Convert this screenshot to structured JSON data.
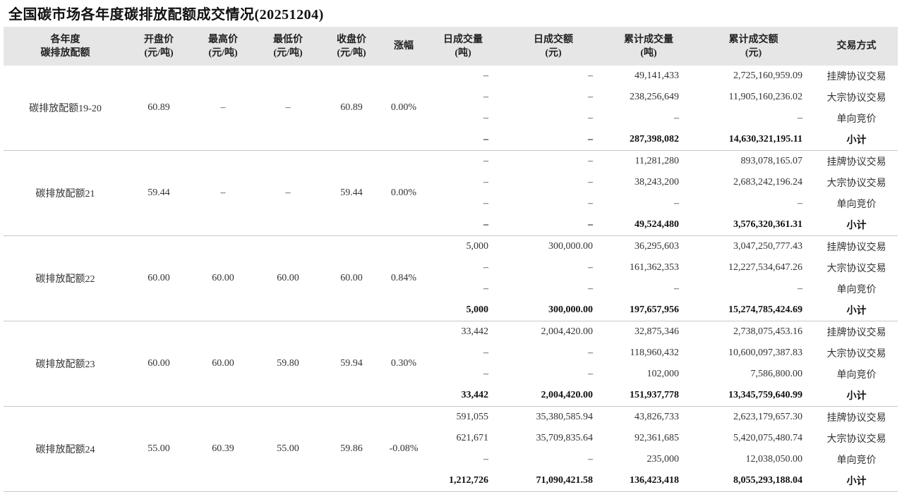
{
  "title": "全国碳市场各年度碳排放配额成交情况(20251204)",
  "headers": [
    {
      "l1": "各年度",
      "l2": "碳排放配额"
    },
    {
      "l1": "开盘价",
      "l2": "(元/吨)"
    },
    {
      "l1": "最高价",
      "l2": "(元/吨)"
    },
    {
      "l1": "最低价",
      "l2": "(元/吨)"
    },
    {
      "l1": "收盘价",
      "l2": "(元/吨)"
    },
    {
      "l1": "涨幅",
      "l2": ""
    },
    {
      "l1": "日成交量",
      "l2": "(吨)"
    },
    {
      "l1": "日成交额",
      "l2": "(元)"
    },
    {
      "l1": "累计成交量",
      "l2": "(吨)"
    },
    {
      "l1": "累计成交额",
      "l2": "(元)"
    },
    {
      "l1": "交易方式",
      "l2": ""
    }
  ],
  "groups": [
    {
      "name": "碳排放配额19-20",
      "open": "60.89",
      "high": "–",
      "low": "–",
      "close": "60.89",
      "change": "0.00%",
      "rows": [
        {
          "daily_volume": "–",
          "daily_amount": "–",
          "cum_volume": "49,141,433",
          "cum_amount": "2,725,160,959.09",
          "method": "挂牌协议交易"
        },
        {
          "daily_volume": "–",
          "daily_amount": "–",
          "cum_volume": "238,256,649",
          "cum_amount": "11,905,160,236.02",
          "method": "大宗协议交易"
        },
        {
          "daily_volume": "–",
          "daily_amount": "–",
          "cum_volume": "–",
          "cum_amount": "–",
          "method": "单向竞价"
        },
        {
          "daily_volume": "–",
          "daily_amount": "–",
          "cum_volume": "287,398,082",
          "cum_amount": "14,630,321,195.11",
          "method": "小计"
        }
      ]
    },
    {
      "name": "碳排放配额21",
      "open": "59.44",
      "high": "–",
      "low": "–",
      "close": "59.44",
      "change": "0.00%",
      "rows": [
        {
          "daily_volume": "–",
          "daily_amount": "–",
          "cum_volume": "11,281,280",
          "cum_amount": "893,078,165.07",
          "method": "挂牌协议交易"
        },
        {
          "daily_volume": "–",
          "daily_amount": "–",
          "cum_volume": "38,243,200",
          "cum_amount": "2,683,242,196.24",
          "method": "大宗协议交易"
        },
        {
          "daily_volume": "–",
          "daily_amount": "–",
          "cum_volume": "–",
          "cum_amount": "–",
          "method": "单向竞价"
        },
        {
          "daily_volume": "–",
          "daily_amount": "–",
          "cum_volume": "49,524,480",
          "cum_amount": "3,576,320,361.31",
          "method": "小计"
        }
      ]
    },
    {
      "name": "碳排放配额22",
      "open": "60.00",
      "high": "60.00",
      "low": "60.00",
      "close": "60.00",
      "change": "0.84%",
      "rows": [
        {
          "daily_volume": "5,000",
          "daily_amount": "300,000.00",
          "cum_volume": "36,295,603",
          "cum_amount": "3,047,250,777.43",
          "method": "挂牌协议交易"
        },
        {
          "daily_volume": "–",
          "daily_amount": "–",
          "cum_volume": "161,362,353",
          "cum_amount": "12,227,534,647.26",
          "method": "大宗协议交易"
        },
        {
          "daily_volume": "–",
          "daily_amount": "–",
          "cum_volume": "–",
          "cum_amount": "–",
          "method": "单向竞价"
        },
        {
          "daily_volume": "5,000",
          "daily_amount": "300,000.00",
          "cum_volume": "197,657,956",
          "cum_amount": "15,274,785,424.69",
          "method": "小计"
        }
      ]
    },
    {
      "name": "碳排放配额23",
      "open": "60.00",
      "high": "60.00",
      "low": "59.80",
      "close": "59.94",
      "change": "0.30%",
      "rows": [
        {
          "daily_volume": "33,442",
          "daily_amount": "2,004,420.00",
          "cum_volume": "32,875,346",
          "cum_amount": "2,738,075,453.16",
          "method": "挂牌协议交易"
        },
        {
          "daily_volume": "–",
          "daily_amount": "–",
          "cum_volume": "118,960,432",
          "cum_amount": "10,600,097,387.83",
          "method": "大宗协议交易"
        },
        {
          "daily_volume": "–",
          "daily_amount": "–",
          "cum_volume": "102,000",
          "cum_amount": "7,586,800.00",
          "method": "单向竞价"
        },
        {
          "daily_volume": "33,442",
          "daily_amount": "2,004,420.00",
          "cum_volume": "151,937,778",
          "cum_amount": "13,345,759,640.99",
          "method": "小计"
        }
      ]
    },
    {
      "name": "碳排放配额24",
      "open": "55.00",
      "high": "60.39",
      "low": "55.00",
      "close": "59.86",
      "change": "-0.08%",
      "rows": [
        {
          "daily_volume": "591,055",
          "daily_amount": "35,380,585.94",
          "cum_volume": "43,826,733",
          "cum_amount": "2,623,179,657.30",
          "method": "挂牌协议交易"
        },
        {
          "daily_volume": "621,671",
          "daily_amount": "35,709,835.64",
          "cum_volume": "92,361,685",
          "cum_amount": "5,420,075,480.74",
          "method": "大宗协议交易"
        },
        {
          "daily_volume": "–",
          "daily_amount": "–",
          "cum_volume": "235,000",
          "cum_amount": "12,038,050.00",
          "method": "单向竞价"
        },
        {
          "daily_volume": "1,212,726",
          "daily_amount": "71,090,421.58",
          "cum_volume": "136,423,418",
          "cum_amount": "8,055,293,188.04",
          "method": "小计"
        }
      ]
    }
  ]
}
